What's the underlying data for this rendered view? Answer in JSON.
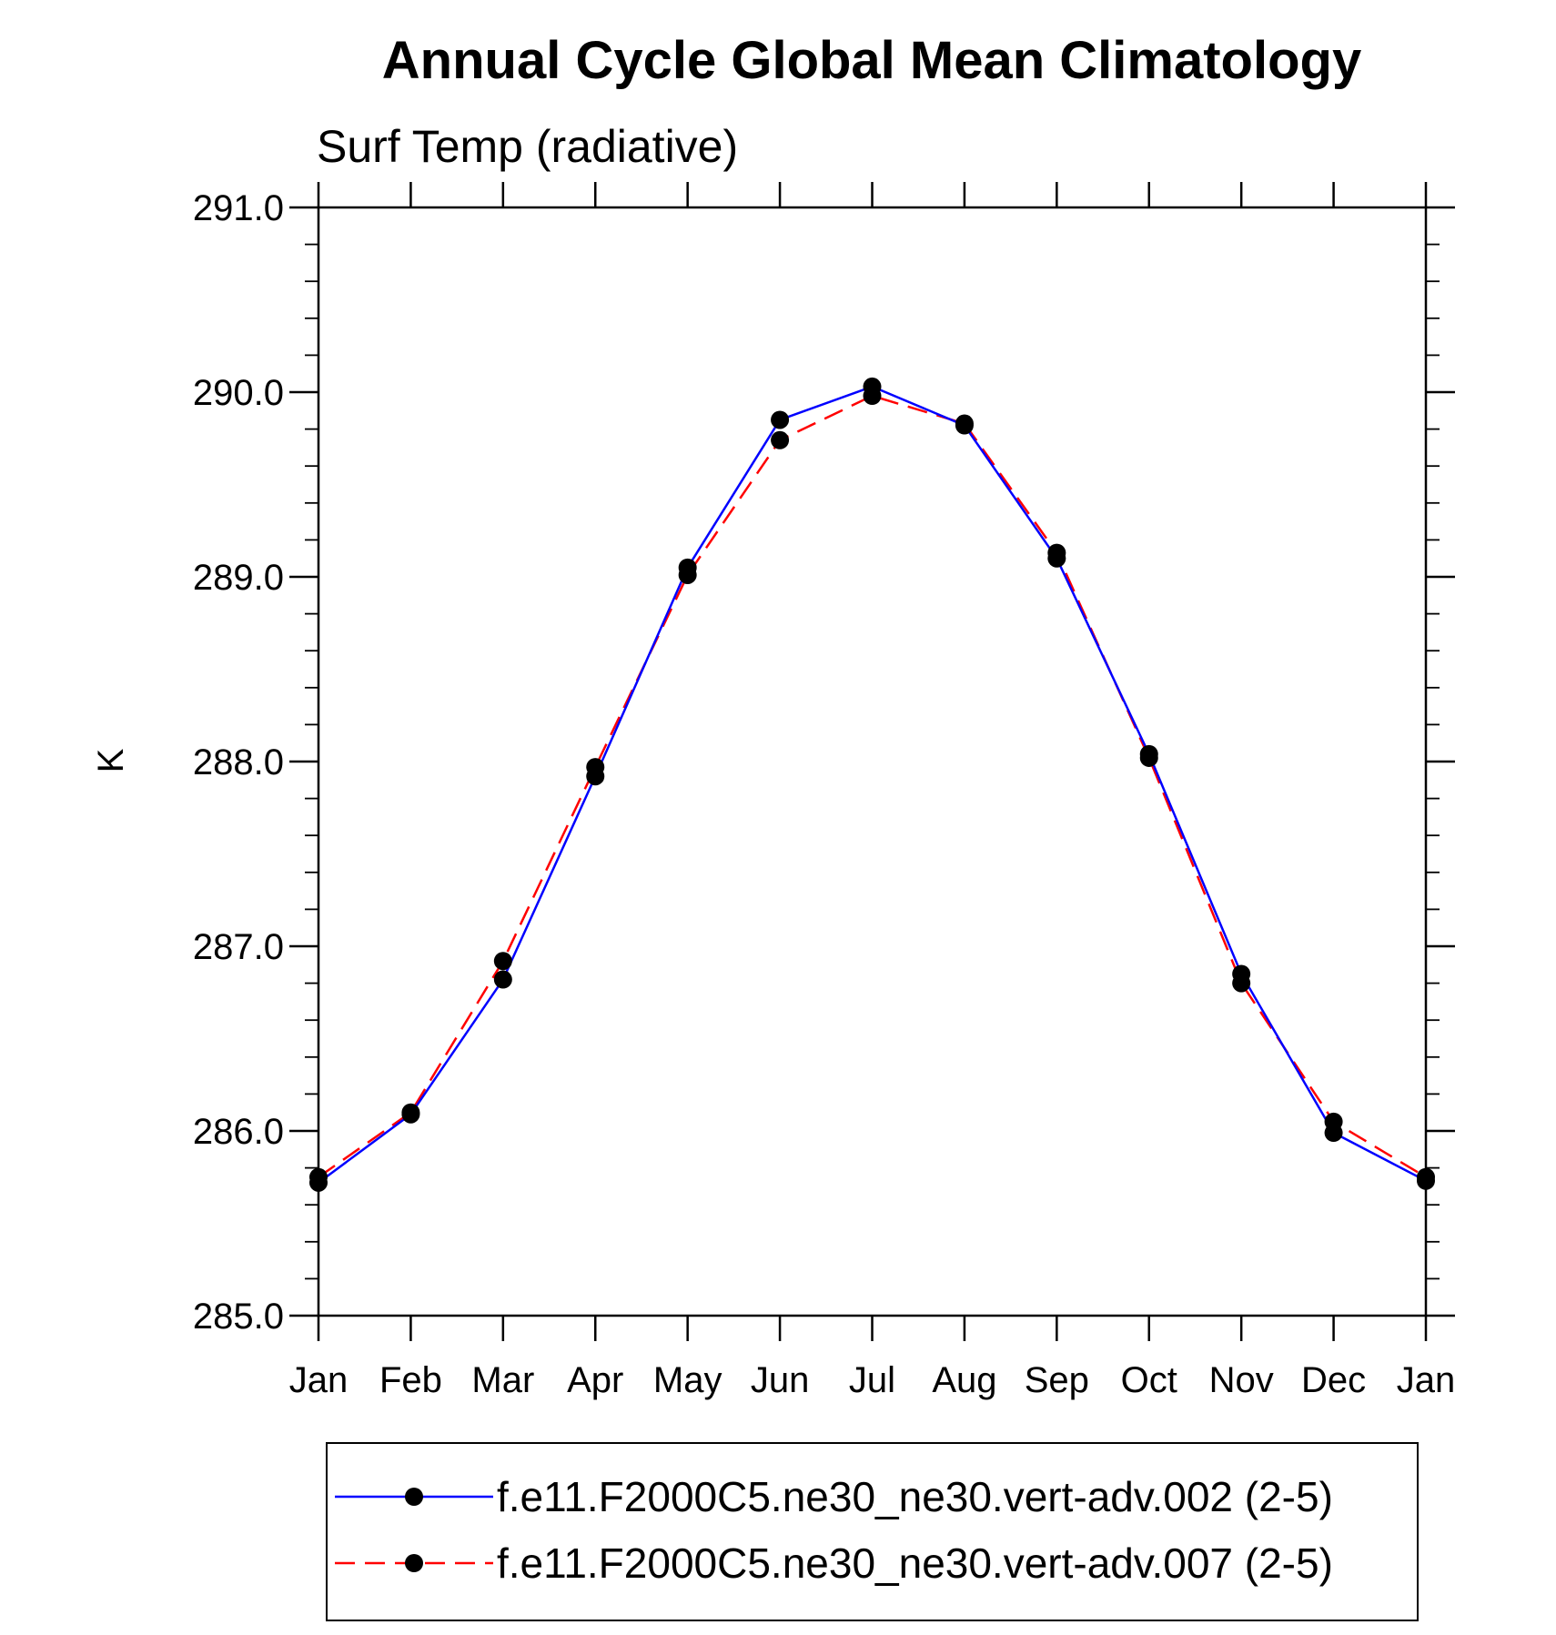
{
  "chart_data": {
    "type": "line",
    "title": "Annual Cycle Global Mean Climatology",
    "subtitle": "Surf Temp (radiative)",
    "xlabel": "",
    "ylabel": "K",
    "categories": [
      "Jan",
      "Feb",
      "Mar",
      "Apr",
      "May",
      "Jun",
      "Jul",
      "Aug",
      "Sep",
      "Oct",
      "Nov",
      "Dec",
      "Jan"
    ],
    "ylim": [
      285.0,
      291.0
    ],
    "yticks": [
      "285.0",
      "286.0",
      "287.0",
      "288.0",
      "289.0",
      "290.0",
      "291.0"
    ],
    "grid": false,
    "legend_position": "bottom",
    "series": [
      {
        "name": "f.e11.F2000C5.ne30_ne30.vert-adv.002 (2-5)",
        "color": "#0000ff",
        "dash": "solid",
        "marker": "filled-circle",
        "values": [
          285.72,
          286.09,
          286.82,
          287.92,
          289.05,
          289.85,
          290.03,
          289.82,
          289.1,
          288.04,
          286.85,
          285.99,
          285.73
        ]
      },
      {
        "name": "f.e11.F2000C5.ne30_ne30.vert-adv.007 (2-5)",
        "color": "#ff0000",
        "dash": "dashed",
        "marker": "filled-circle",
        "values": [
          285.75,
          286.1,
          286.92,
          287.97,
          289.01,
          289.74,
          289.98,
          289.83,
          289.13,
          288.02,
          286.8,
          286.05,
          285.75
        ]
      }
    ]
  }
}
